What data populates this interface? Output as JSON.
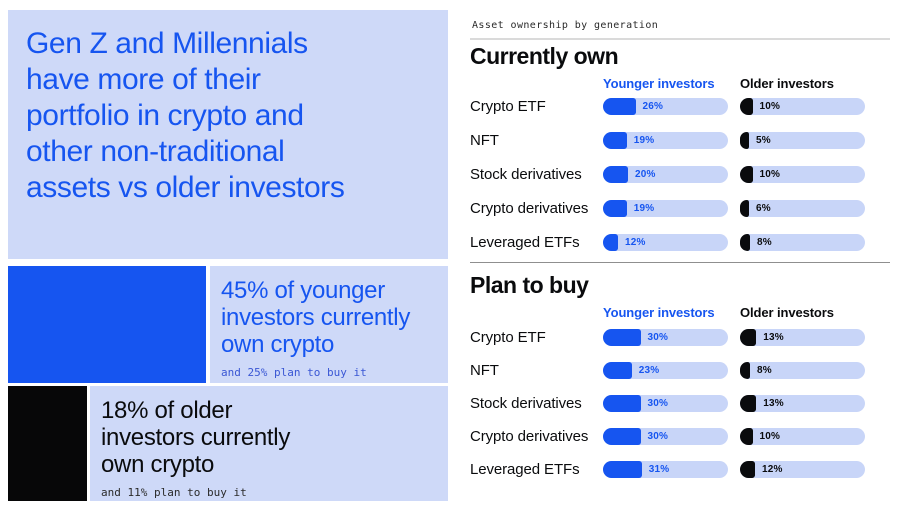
{
  "colors": {
    "brand_blue": "#1655F0",
    "light_panel_blue": "#CED9F8",
    "bar_track_blue": "#C8D5F8",
    "ink_black": "#0A0B0D"
  },
  "left": {
    "headline": "Gen Z and Millennials\nhave more of their\nportfolio in crypto and\nother non-traditional\nassets vs older investors",
    "callout_younger": {
      "bar_percent": 45,
      "heading": "45% of younger\ninvestors currently\nown crypto",
      "sub": "and 25% plan to buy it"
    },
    "callout_older": {
      "bar_percent": 18,
      "heading": "18% of older\ninvestors currently\nown crypto",
      "sub": "and 11% plan to buy it"
    }
  },
  "right": {
    "kicker": "Asset ownership by generation"
  },
  "chart_data": [
    {
      "type": "bar",
      "title": "Currently own",
      "unit": "percent",
      "xlim": [
        0,
        100
      ],
      "legend_position": "top",
      "categories": [
        "Crypto ETF",
        "NFT",
        "Stock derivatives",
        "Crypto derivatives",
        "Leveraged ETFs"
      ],
      "series": [
        {
          "name": "Younger investors",
          "color": "#1655F0",
          "values": [
            26,
            19,
            20,
            19,
            12
          ]
        },
        {
          "name": "Older investors",
          "color": "#0A0B0D",
          "values": [
            10,
            5,
            10,
            6,
            8
          ]
        }
      ]
    },
    {
      "type": "bar",
      "title": "Plan to buy",
      "unit": "percent",
      "xlim": [
        0,
        100
      ],
      "legend_position": "top",
      "categories": [
        "Crypto ETF",
        "NFT",
        "Stock derivatives",
        "Crypto derivatives",
        "Leveraged ETFs"
      ],
      "series": [
        {
          "name": "Younger investors",
          "color": "#1655F0",
          "values": [
            30,
            23,
            30,
            30,
            31
          ]
        },
        {
          "name": "Older investors",
          "color": "#0A0B0D",
          "values": [
            13,
            8,
            13,
            10,
            12
          ]
        }
      ]
    }
  ]
}
